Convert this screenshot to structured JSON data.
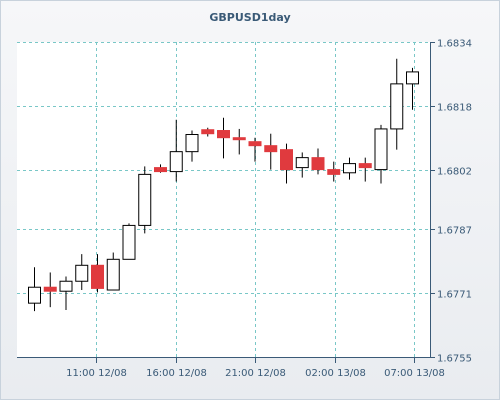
{
  "chart_data": {
    "type": "candlestick",
    "title": "GBPUSD1day",
    "x_tick_labels": [
      "11:00 12/08",
      "16:00 12/08",
      "21:00 12/08",
      "02:00 13/08",
      "07:00 13/08"
    ],
    "y_ticks": [
      1.6755,
      1.6771,
      1.6787,
      1.6802,
      1.6818,
      1.6834
    ],
    "y_tick_labels": [
      "1.6755",
      "1.6771",
      "1.6787",
      "1.6802",
      "1.6818",
      "1.6834"
    ],
    "ylim": [
      1.6755,
      1.6834
    ],
    "grid": true,
    "candles": [
      {
        "o": 1.67685,
        "h": 1.67775,
        "l": 1.67665,
        "c": 1.67725
      },
      {
        "o": 1.67725,
        "h": 1.67762,
        "l": 1.67675,
        "c": 1.67715
      },
      {
        "o": 1.67715,
        "h": 1.67752,
        "l": 1.67668,
        "c": 1.6774
      },
      {
        "o": 1.6774,
        "h": 1.67808,
        "l": 1.67718,
        "c": 1.6778
      },
      {
        "o": 1.6778,
        "h": 1.67808,
        "l": 1.67712,
        "c": 1.67722
      },
      {
        "o": 1.67718,
        "h": 1.67812,
        "l": 1.67718,
        "c": 1.67795
      },
      {
        "o": 1.67795,
        "h": 1.67885,
        "l": 1.67795,
        "c": 1.6788
      },
      {
        "o": 1.6788,
        "h": 1.68028,
        "l": 1.6786,
        "c": 1.68008
      },
      {
        "o": 1.68025,
        "h": 1.68033,
        "l": 1.68012,
        "c": 1.68015
      },
      {
        "o": 1.68015,
        "h": 1.68145,
        "l": 1.6799,
        "c": 1.68065
      },
      {
        "o": 1.68065,
        "h": 1.68118,
        "l": 1.6804,
        "c": 1.68108
      },
      {
        "o": 1.6812,
        "h": 1.68125,
        "l": 1.68103,
        "c": 1.6811
      },
      {
        "o": 1.68118,
        "h": 1.6815,
        "l": 1.68048,
        "c": 1.681
      },
      {
        "o": 1.681,
        "h": 1.68122,
        "l": 1.68058,
        "c": 1.68095
      },
      {
        "o": 1.6809,
        "h": 1.681,
        "l": 1.6804,
        "c": 1.6808
      },
      {
        "o": 1.6808,
        "h": 1.6811,
        "l": 1.6802,
        "c": 1.68065
      },
      {
        "o": 1.6807,
        "h": 1.68085,
        "l": 1.67985,
        "c": 1.6802
      },
      {
        "o": 1.68025,
        "h": 1.68063,
        "l": 1.68,
        "c": 1.6805
      },
      {
        "o": 1.6805,
        "h": 1.68073,
        "l": 1.68008,
        "c": 1.6802
      },
      {
        "o": 1.6802,
        "h": 1.6804,
        "l": 1.6799,
        "c": 1.68008
      },
      {
        "o": 1.68012,
        "h": 1.6805,
        "l": 1.67995,
        "c": 1.68035
      },
      {
        "o": 1.68035,
        "h": 1.6805,
        "l": 1.6799,
        "c": 1.68025
      },
      {
        "o": 1.6802,
        "h": 1.68132,
        "l": 1.67985,
        "c": 1.68122
      },
      {
        "o": 1.68122,
        "h": 1.68298,
        "l": 1.6807,
        "c": 1.68235
      },
      {
        "o": 1.68235,
        "h": 1.68275,
        "l": 1.6817,
        "c": 1.68265
      }
    ],
    "colors": {
      "up": "#ffffff",
      "down": "#e03a3e",
      "outline": "#000000",
      "grid": "#79c7c7",
      "axis": "#3a5a77"
    }
  }
}
